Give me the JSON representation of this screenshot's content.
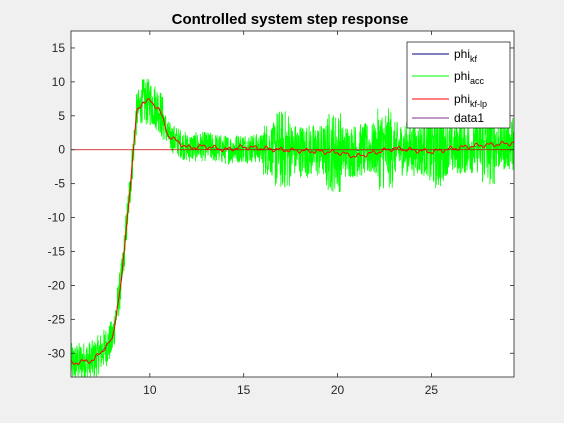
{
  "chart_data": {
    "type": "line",
    "title": "Controlled system step response",
    "xlabel": "",
    "ylabel": "",
    "xlim": [
      5.8,
      29.4
    ],
    "ylim": [
      -33.5,
      17.5
    ],
    "grid": false,
    "legend_position": "top-right",
    "xticks": [
      10,
      15,
      20,
      25
    ],
    "yticks": [
      15,
      10,
      5,
      0,
      -5,
      -10,
      -15,
      -20,
      -25,
      -30
    ],
    "xtick_labels": [
      "10",
      "15",
      "20",
      "25"
    ],
    "ytick_labels": [
      "15",
      "10",
      "5",
      "0",
      "-5",
      "-10",
      "-15",
      "-20",
      "-25",
      "-30"
    ],
    "series": [
      {
        "name": "kf",
        "color": "#000080",
        "x": [
          5.8,
          7.0,
          7.5,
          8.0,
          8.5,
          9.0,
          9.3,
          9.6,
          10.0,
          10.5,
          11.0,
          12.0,
          13.0,
          14.0,
          15.0,
          17.0,
          20.0,
          23.0,
          25.0,
          27.0,
          29.4
        ],
        "y": [
          -31.5,
          -31.0,
          -29.5,
          -28.0,
          -19.0,
          -4.0,
          5.5,
          7.0,
          7.0,
          6.0,
          2.0,
          0.3,
          0.5,
          0.0,
          0.3,
          0.0,
          -0.3,
          0.2,
          0.0,
          0.4,
          1.0
        ]
      },
      {
        "name": "acc",
        "color": "#00ff00",
        "noise": [
          {
            "x0": 5.8,
            "x1": 9.6,
            "amp": 3.0
          },
          {
            "x0": 9.6,
            "x1": 10.8,
            "amp": 3.5
          },
          {
            "x0": 10.8,
            "x1": 16.0,
            "amp": 2.2
          },
          {
            "x0": 16.0,
            "x1": 29.4,
            "amp": 4.0
          }
        ],
        "y_range": [
          -33.5,
          10.5
        ]
      },
      {
        "name": "kf-lp",
        "color": "#ff0000",
        "x": [
          5.8,
          7.0,
          7.5,
          8.0,
          8.5,
          9.0,
          9.3,
          9.6,
          10.0,
          10.5,
          11.0,
          12.0,
          13.0,
          14.0,
          15.0,
          17.0,
          20.0,
          21.0,
          23.0,
          25.0,
          27.0,
          29.4
        ],
        "y": [
          -31.5,
          -31.0,
          -29.5,
          -28.0,
          -19.0,
          -4.0,
          5.5,
          7.0,
          7.2,
          6.0,
          2.0,
          0.3,
          0.5,
          0.0,
          0.4,
          0.0,
          -0.4,
          -1.0,
          0.2,
          -0.3,
          0.5,
          1.0
        ]
      },
      {
        "name": "data1",
        "color": "#7e2f8e",
        "x": [
          5.8,
          29.4
        ],
        "y": [
          0,
          0
        ]
      }
    ],
    "legend": [
      {
        "base": "phi",
        "sub": "kf",
        "color": "#000080"
      },
      {
        "base": "phi",
        "sub": "acc",
        "color": "#00ff00"
      },
      {
        "base": "phi",
        "sub": "kf-lp",
        "color": "#ff0000"
      },
      {
        "base": "data1",
        "sub": "",
        "color": "#7e2f8e"
      }
    ],
    "reference_line_color": "#cc0000"
  }
}
